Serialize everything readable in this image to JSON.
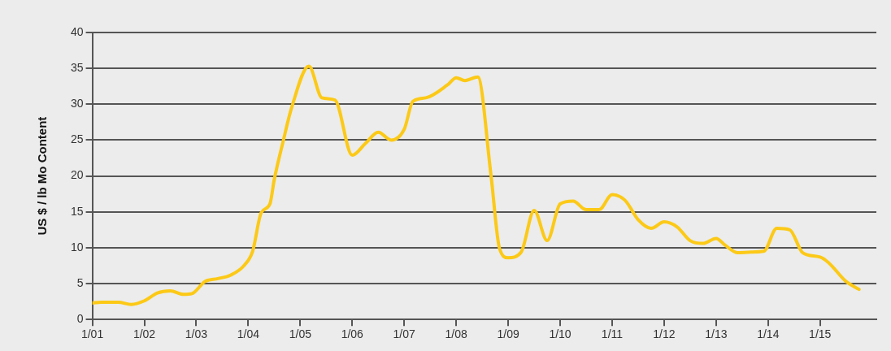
{
  "chart_data": {
    "type": "line",
    "ylabel": "US $ / lb Mo Content",
    "x": [
      "2001-01",
      "2001-03",
      "2001-07",
      "2001-10",
      "2002-01",
      "2002-04",
      "2002-07",
      "2002-10",
      "2002-12",
      "2003-03",
      "2003-06",
      "2003-09",
      "2003-12",
      "2004-02",
      "2004-04",
      "2004-06",
      "2004-07",
      "2004-09",
      "2004-11",
      "2005-03",
      "2005-06",
      "2005-09",
      "2006-01",
      "2006-04",
      "2006-07",
      "2006-10",
      "2007-01",
      "2007-03",
      "2007-06",
      "2007-11",
      "2008-01",
      "2008-03",
      "2008-06",
      "2008-09",
      "2008-11",
      "2009-01",
      "2009-04",
      "2009-07",
      "2009-10",
      "2010-01",
      "2010-04",
      "2010-07",
      "2010-10",
      "2011-01",
      "2011-04",
      "2011-07",
      "2011-10",
      "2012-01",
      "2012-04",
      "2012-07",
      "2012-10",
      "2013-01",
      "2013-03",
      "2013-06",
      "2013-09",
      "2013-12",
      "2014-03",
      "2014-06",
      "2014-09",
      "2015-01",
      "2015-03",
      "2015-07",
      "2015-10"
    ],
    "series": [
      {
        "color": "#fcc917",
        "values": [
          2.3,
          2.4,
          2.4,
          2.1,
          2.6,
          3.7,
          4.0,
          3.5,
          3.6,
          5.3,
          5.7,
          6.2,
          7.5,
          9.5,
          14.9,
          16.1,
          19.5,
          24.7,
          29.5,
          35.3,
          30.9,
          30.6,
          22.9,
          24.5,
          26.1,
          25.0,
          26.5,
          30.4,
          30.9,
          32.7,
          33.7,
          33.3,
          33.8,
          20.3,
          9.9,
          8.6,
          9.4,
          15.2,
          11.0,
          16.1,
          16.5,
          15.3,
          15.3,
          17.4,
          16.6,
          13.9,
          12.7,
          13.6,
          12.9,
          11.0,
          10.6,
          11.3,
          10.4,
          9.3,
          9.4,
          9.5,
          12.7,
          12.5,
          9.3,
          8.7,
          7.9,
          5.3,
          4.2
        ]
      }
    ],
    "xlim": [
      "2001-01",
      "2016-02"
    ],
    "xticks": [
      {
        "value": "2001-01",
        "label": "1/01"
      },
      {
        "value": "2002-01",
        "label": "1/02"
      },
      {
        "value": "2003-01",
        "label": "1/03"
      },
      {
        "value": "2004-01",
        "label": "1/04"
      },
      {
        "value": "2005-01",
        "label": "1/05"
      },
      {
        "value": "2006-01",
        "label": "1/06"
      },
      {
        "value": "2007-01",
        "label": "1/07"
      },
      {
        "value": "2008-01",
        "label": "1/08"
      },
      {
        "value": "2009-01",
        "label": "1/09"
      },
      {
        "value": "2010-01",
        "label": "1/10"
      },
      {
        "value": "2011-01",
        "label": "1/11"
      },
      {
        "value": "2012-01",
        "label": "1/12"
      },
      {
        "value": "2013-01",
        "label": "1/13"
      },
      {
        "value": "2014-01",
        "label": "1/14"
      },
      {
        "value": "2015-01",
        "label": "1/15"
      }
    ],
    "ylim": [
      0,
      40
    ],
    "yticks": [
      0,
      5,
      10,
      15,
      20,
      25,
      30,
      35,
      40
    ],
    "grid": "y",
    "marker": "none",
    "line_style": "solid"
  }
}
